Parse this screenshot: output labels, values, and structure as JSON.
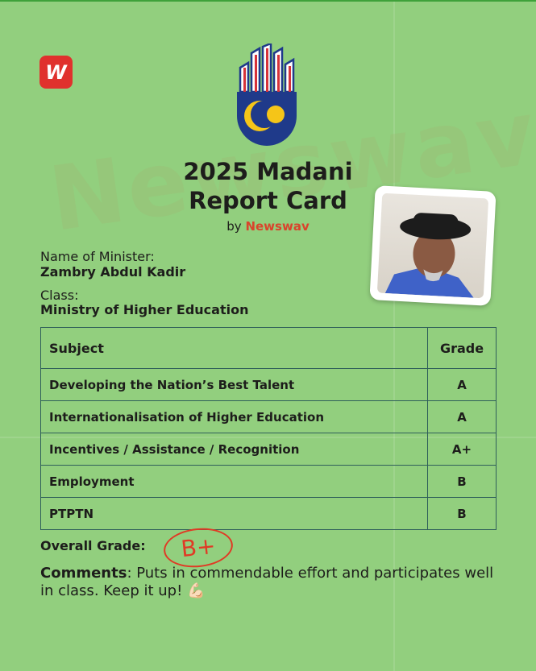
{
  "brand": {
    "logo_letter": "W",
    "watermark": "Newswav",
    "accent": "#e0312d"
  },
  "header": {
    "title_line1": "2025 Madani",
    "title_line2": "Report Card",
    "by": "by",
    "by_brand": "Newswav"
  },
  "minister": {
    "name_label": "Name of Minister:",
    "name": "Zambry Abdul Kadir",
    "class_label": "Class:",
    "class": "Ministry of Higher Education"
  },
  "table": {
    "headers": [
      "Subject",
      "Grade"
    ],
    "rows": [
      {
        "subject": "Developing the Nation’s Best Talent",
        "grade": "A"
      },
      {
        "subject": "Internationalisation of Higher Education",
        "grade": "A"
      },
      {
        "subject": "Incentives / Assistance / Recognition",
        "grade": "A+"
      },
      {
        "subject": "Employment",
        "grade": "B"
      },
      {
        "subject": "PTPTN",
        "grade": "B"
      }
    ]
  },
  "overall": {
    "label": "Overall Grade:",
    "grade": "B+"
  },
  "comments": {
    "label": "Comments",
    "text": ": Puts in commendable effort and participates well in class. Keep it up!",
    "emoji": "💪🏻"
  }
}
